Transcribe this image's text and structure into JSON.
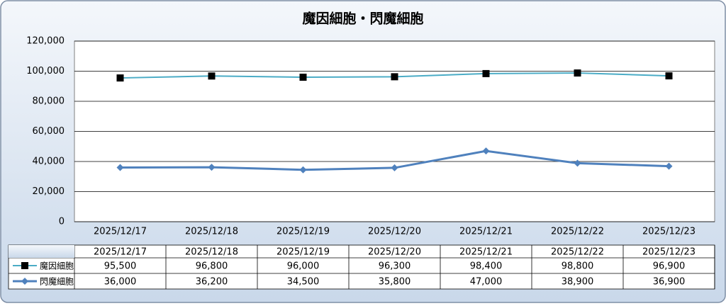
{
  "chart_data": {
    "type": "line",
    "title": "魔因細胞・閃魔細胞",
    "categories": [
      "2025/12/17",
      "2025/12/18",
      "2025/12/19",
      "2025/12/20",
      "2025/12/21",
      "2025/12/22",
      "2025/12/23"
    ],
    "series": [
      {
        "name": "魔因細胞",
        "color": "#4bacc6",
        "marker": "square",
        "marker_color": "#000000",
        "values": [
          95500,
          96800,
          96000,
          96300,
          98400,
          98800,
          96900
        ],
        "value_labels": [
          "95,500",
          "96,800",
          "96,000",
          "96,300",
          "98,400",
          "98,800",
          "96,900"
        ]
      },
      {
        "name": "閃魔細胞",
        "color": "#4f81bd",
        "marker": "diamond",
        "marker_color": "#4f81bd",
        "values": [
          36000,
          36200,
          34500,
          35800,
          47000,
          38900,
          36900
        ],
        "value_labels": [
          "36,000",
          "36,200",
          "34,500",
          "35,800",
          "47,000",
          "38,900",
          "36,900"
        ]
      }
    ],
    "ylim": [
      0,
      120000
    ],
    "yticks": [
      0,
      {
        "value": 20000,
        "label": "20,000"
      },
      {
        "value": 40000,
        "label": "40,000"
      },
      {
        "value": 60000,
        "label": "60,000"
      },
      {
        "value": 80000,
        "label": "80,000"
      },
      {
        "value": 100000,
        "label": "100,000"
      },
      {
        "value": 120000,
        "label": "120,000"
      }
    ],
    "grid": true
  }
}
